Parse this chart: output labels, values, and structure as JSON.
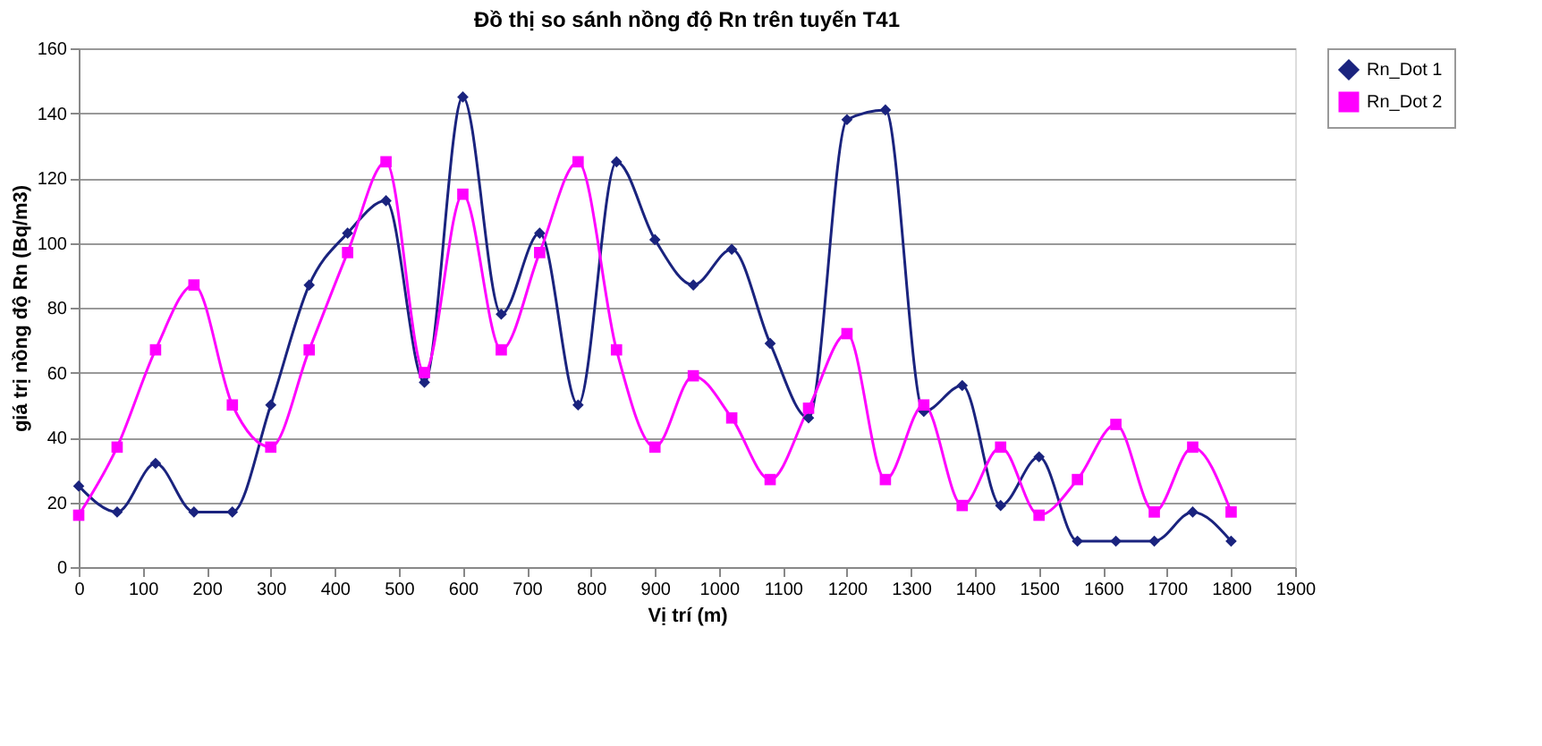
{
  "chart_data": {
    "type": "line",
    "title": "Đồ thị so sánh nồng độ Rn trên tuyến T41",
    "xlabel": "Vị trí (m)",
    "ylabel": "giá trị nồng độ Rn (Bq/m3)",
    "x": [
      0,
      60,
      120,
      180,
      240,
      300,
      360,
      420,
      480,
      540,
      600,
      660,
      720,
      780,
      840,
      900,
      960,
      1020,
      1080,
      1140,
      1200,
      1260,
      1320,
      1380,
      1440,
      1500,
      1560,
      1620,
      1680,
      1740,
      1800
    ],
    "series": [
      {
        "name": "Rn_Dot 1",
        "color": "#1a237e",
        "marker": "diamond",
        "values": [
          25,
          17,
          32,
          17,
          17,
          50,
          87,
          103,
          113,
          57,
          145,
          78,
          103,
          50,
          125,
          101,
          87,
          98,
          69,
          46,
          138,
          141,
          48,
          56,
          19,
          34,
          8,
          8,
          8,
          17,
          8
        ]
      },
      {
        "name": "Rn_Dot 2",
        "color": "#ff00ff",
        "marker": "square",
        "values": [
          16,
          37,
          67,
          87,
          50,
          37,
          67,
          97,
          125,
          60,
          115,
          67,
          97,
          125,
          67,
          37,
          59,
          46,
          27,
          49,
          72,
          27,
          50,
          19,
          37,
          16,
          27,
          44,
          17,
          37,
          17
        ]
      }
    ],
    "xlim": [
      0,
      1900
    ],
    "xticks": [
      0,
      100,
      200,
      300,
      400,
      500,
      600,
      700,
      800,
      900,
      1000,
      1100,
      1200,
      1300,
      1400,
      1500,
      1600,
      1700,
      1800,
      1900
    ],
    "ylim": [
      0,
      160
    ],
    "yticks": [
      0,
      20,
      40,
      60,
      80,
      100,
      120,
      140,
      160
    ],
    "grid": "y",
    "legend": "right",
    "line_style": "solid"
  }
}
